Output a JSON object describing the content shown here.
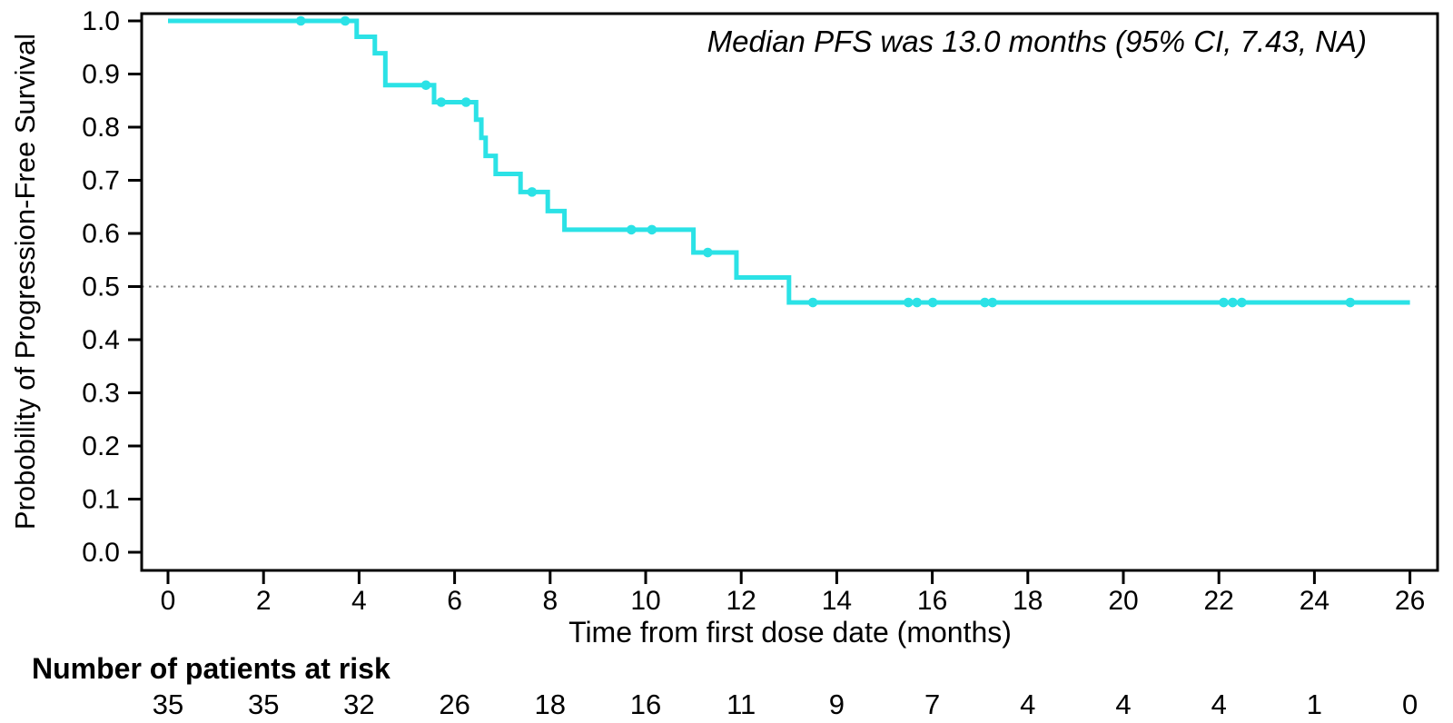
{
  "chart_data": {
    "type": "line",
    "subtype": "kaplan-meier-step-curve",
    "annotation": "Median PFS was 13.0 months (95% CI, 7.43, NA)",
    "xlabel": "Time from first dose date (months)",
    "ylabel": "Probobility of Progression-Free Survival",
    "xlim": [
      0,
      26
    ],
    "ylim": [
      0.0,
      1.0
    ],
    "x_ticks": [
      0,
      2,
      4,
      6,
      8,
      10,
      12,
      14,
      16,
      18,
      20,
      22,
      24,
      26
    ],
    "y_ticks": [
      1.0,
      0.9,
      0.8,
      0.7,
      0.6,
      0.5,
      0.4,
      0.3,
      0.2,
      0.1,
      0.0
    ],
    "grid": "off",
    "reference_line_y": 0.5,
    "curve_color": "#2BE2E6",
    "reference_line_color": "#7a7a7a",
    "axis_color": "#000000",
    "survival_steps": [
      {
        "t": 0.0,
        "s": 1.0
      },
      {
        "t": 3.95,
        "s": 0.97
      },
      {
        "t": 4.33,
        "s": 0.939
      },
      {
        "t": 4.55,
        "s": 0.879
      },
      {
        "t": 5.57,
        "s": 0.847
      },
      {
        "t": 6.45,
        "s": 0.814
      },
      {
        "t": 6.56,
        "s": 0.78
      },
      {
        "t": 6.65,
        "s": 0.746
      },
      {
        "t": 6.86,
        "s": 0.712
      },
      {
        "t": 7.38,
        "s": 0.678
      },
      {
        "t": 7.95,
        "s": 0.642
      },
      {
        "t": 8.3,
        "s": 0.607
      },
      {
        "t": 11.0,
        "s": 0.564
      },
      {
        "t": 11.9,
        "s": 0.517
      },
      {
        "t": 13.0,
        "s": 0.47
      },
      {
        "t": 26.0,
        "s": 0.47
      }
    ],
    "censor_marks": [
      {
        "t": 2.78,
        "s": 1.0
      },
      {
        "t": 3.71,
        "s": 1.0
      },
      {
        "t": 5.4,
        "s": 0.879
      },
      {
        "t": 5.72,
        "s": 0.847
      },
      {
        "t": 6.24,
        "s": 0.847
      },
      {
        "t": 7.62,
        "s": 0.678
      },
      {
        "t": 9.7,
        "s": 0.607
      },
      {
        "t": 10.13,
        "s": 0.607
      },
      {
        "t": 11.3,
        "s": 0.564
      },
      {
        "t": 13.5,
        "s": 0.47
      },
      {
        "t": 15.5,
        "s": 0.47
      },
      {
        "t": 15.68,
        "s": 0.47
      },
      {
        "t": 16.01,
        "s": 0.47
      },
      {
        "t": 17.1,
        "s": 0.47
      },
      {
        "t": 17.26,
        "s": 0.47
      },
      {
        "t": 22.1,
        "s": 0.47
      },
      {
        "t": 22.29,
        "s": 0.47
      },
      {
        "t": 22.48,
        "s": 0.47
      },
      {
        "t": 24.75,
        "s": 0.47
      }
    ],
    "at_risk": {
      "title": "Number of patients at risk",
      "times": [
        0,
        2,
        4,
        6,
        8,
        10,
        12,
        14,
        16,
        18,
        20,
        22,
        24,
        26
      ],
      "counts": [
        35,
        35,
        32,
        26,
        18,
        16,
        11,
        9,
        7,
        4,
        4,
        4,
        1,
        0
      ]
    }
  }
}
